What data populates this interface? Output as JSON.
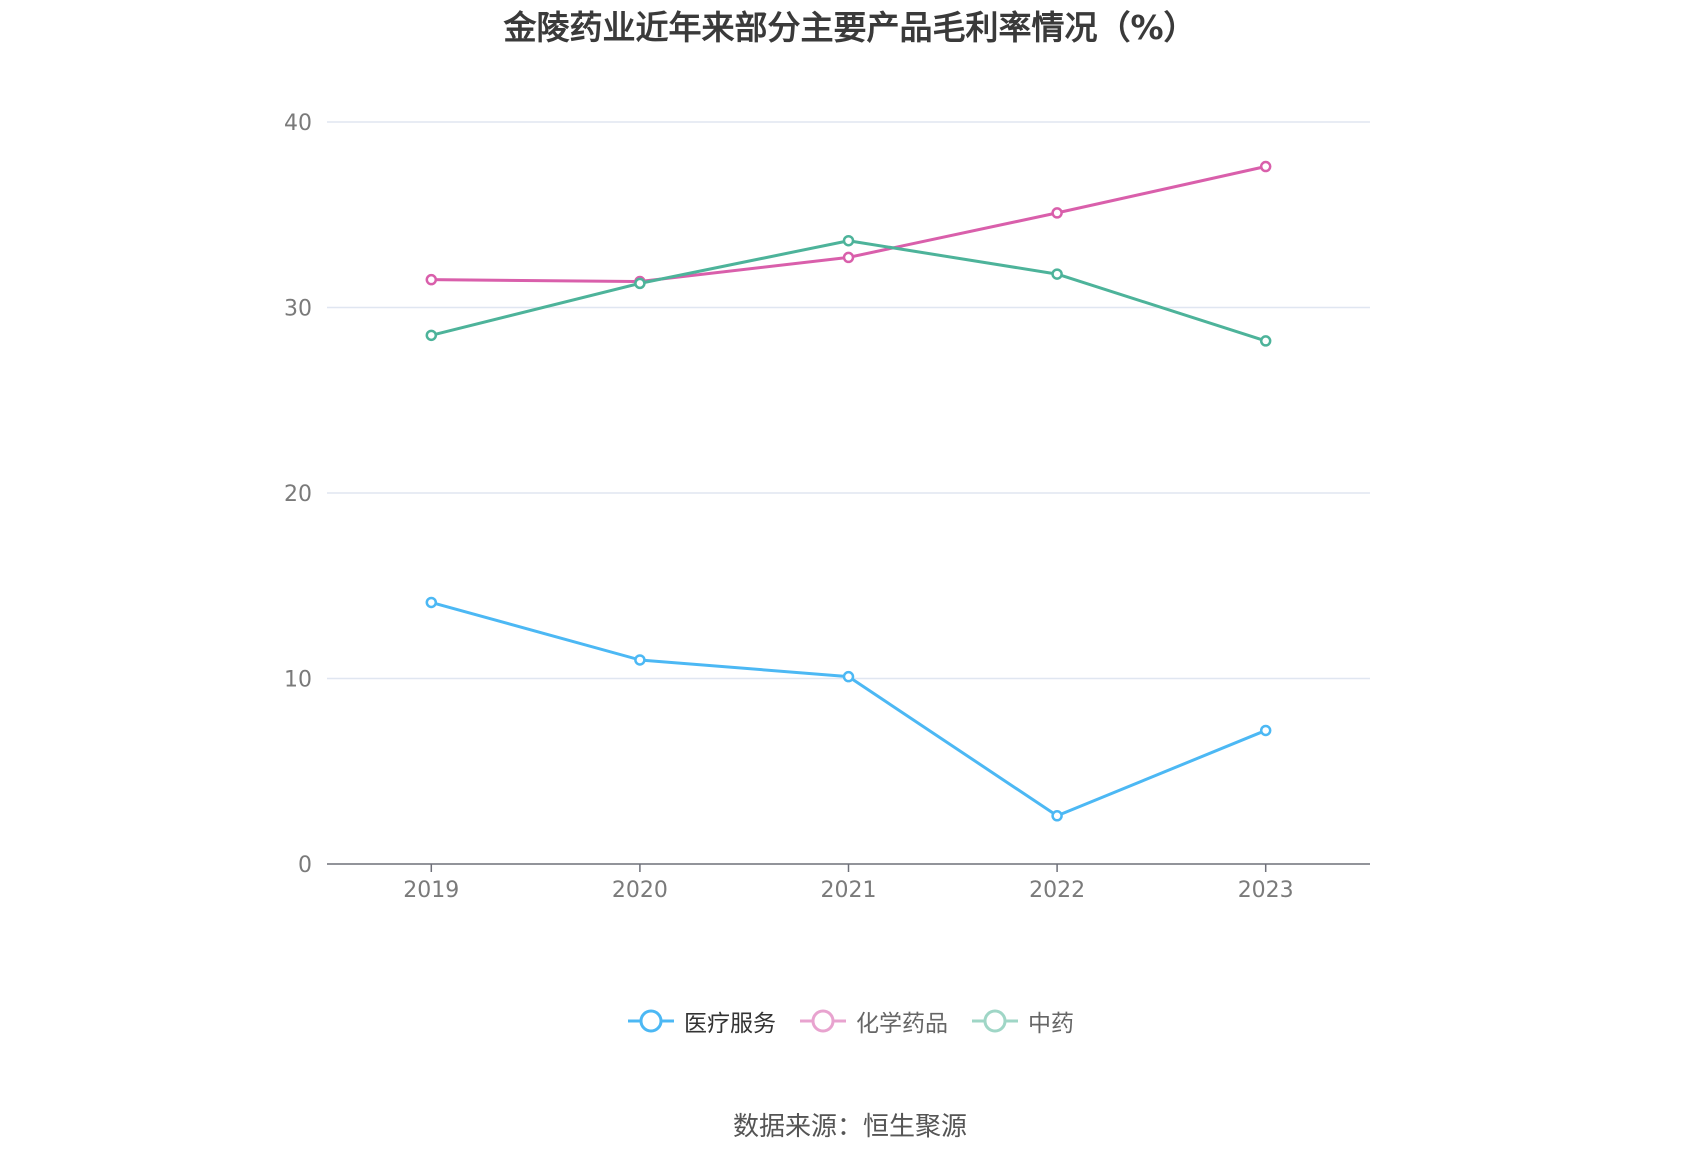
{
  "title": "金陵药业近年来部分主要产品毛利率情况（%）",
  "source": "数据来源：恒生聚源",
  "chart_data": {
    "type": "line",
    "title": "金陵药业近年来部分主要产品毛利率情况（%）",
    "categories": [
      "2019",
      "2020",
      "2021",
      "2022",
      "2023"
    ],
    "ylim": [
      0,
      40
    ],
    "yticks": [
      0,
      10,
      20,
      30,
      40
    ],
    "grid": true,
    "legend_position": "bottom",
    "series": [
      {
        "name": "医疗服务",
        "color": "#4cb8f4",
        "values": [
          14.1,
          11.0,
          10.1,
          2.6,
          7.2
        ]
      },
      {
        "name": "化学药品",
        "color": "#d95fab",
        "values": [
          31.5,
          31.4,
          32.7,
          35.1,
          37.6
        ]
      },
      {
        "name": "中药",
        "color": "#4db39a",
        "values": [
          28.5,
          31.3,
          33.6,
          31.8,
          28.2
        ]
      }
    ]
  },
  "legend": [
    {
      "label": "医疗服务",
      "color": "#4cb8f4",
      "icon": "circle-line-icon"
    },
    {
      "label": "化学药品",
      "color": "#e8a3cf",
      "icon": "circle-line-icon"
    },
    {
      "label": "中药",
      "color": "#9fd6c6",
      "icon": "circle-line-icon"
    }
  ]
}
